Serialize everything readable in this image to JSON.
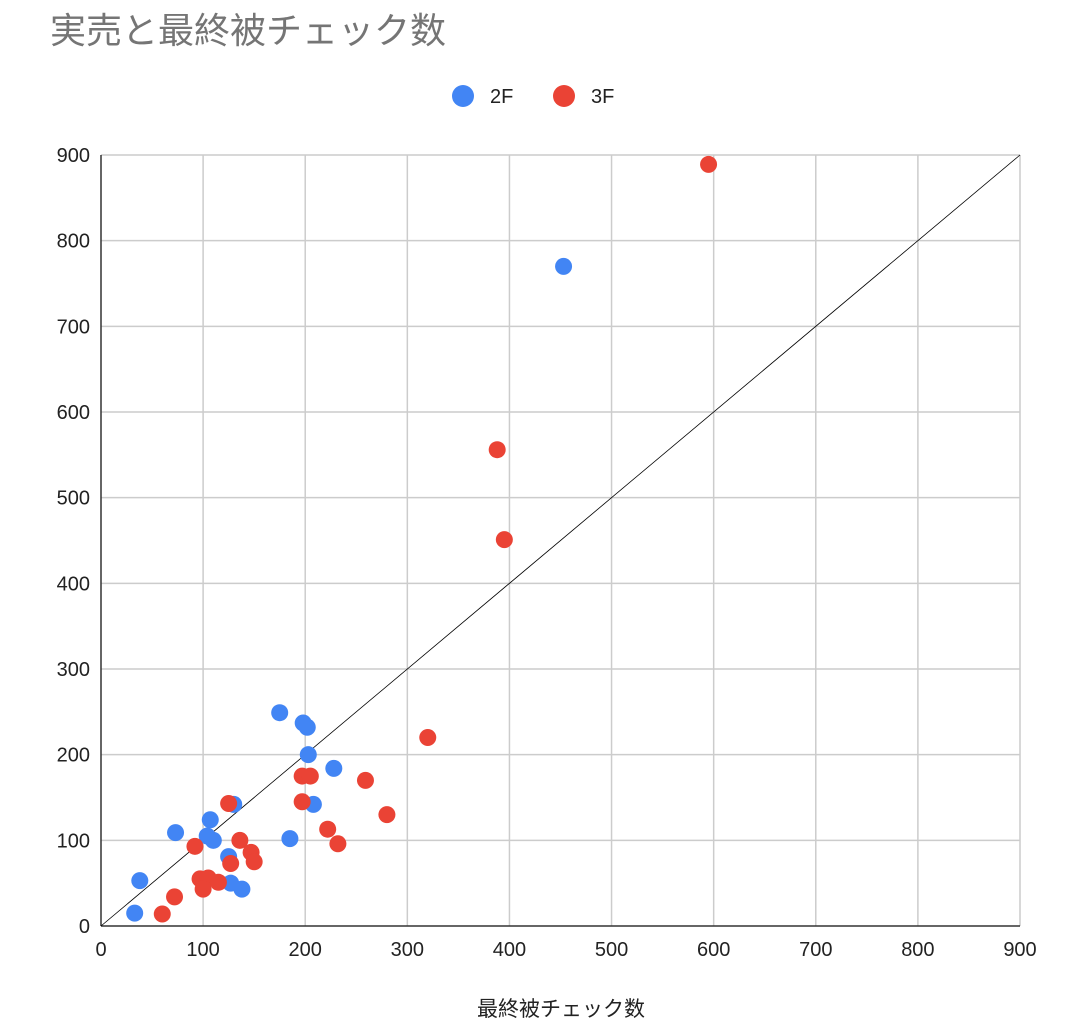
{
  "chart_data": {
    "type": "scatter",
    "title": "実売と最終被チェック数",
    "xlabel": "最終被チェック数",
    "ylabel": "",
    "xlim": [
      0,
      900
    ],
    "ylim": [
      0,
      900
    ],
    "xticks": [
      0,
      100,
      200,
      300,
      400,
      500,
      600,
      700,
      800,
      900
    ],
    "yticks": [
      0,
      100,
      200,
      300,
      400,
      500,
      600,
      700,
      800,
      900
    ],
    "grid": true,
    "legend_position": "top-center",
    "reference_line": {
      "from": [
        0,
        0
      ],
      "to": [
        900,
        900
      ],
      "color": "#000000"
    },
    "series": [
      {
        "name": "2F",
        "color": "#4285f4",
        "points": [
          [
            453,
            770
          ],
          [
            175,
            249
          ],
          [
            198,
            237
          ],
          [
            202,
            232
          ],
          [
            203,
            200
          ],
          [
            228,
            184
          ],
          [
            130,
            142
          ],
          [
            208,
            142
          ],
          [
            107,
            124
          ],
          [
            73,
            109
          ],
          [
            104,
            105
          ],
          [
            110,
            100
          ],
          [
            185,
            102
          ],
          [
            125,
            81
          ],
          [
            38,
            53
          ],
          [
            127,
            50
          ],
          [
            138,
            43
          ],
          [
            33,
            15
          ]
        ]
      },
      {
        "name": "3F",
        "color": "#ea4335",
        "points": [
          [
            595,
            889
          ],
          [
            388,
            556
          ],
          [
            395,
            451
          ],
          [
            320,
            220
          ],
          [
            197,
            175
          ],
          [
            205,
            175
          ],
          [
            259,
            170
          ],
          [
            197,
            145
          ],
          [
            125,
            143
          ],
          [
            222,
            113
          ],
          [
            280,
            130
          ],
          [
            136,
            100
          ],
          [
            232,
            96
          ],
          [
            92,
            93
          ],
          [
            147,
            86
          ],
          [
            150,
            75
          ],
          [
            127,
            73
          ],
          [
            97,
            55
          ],
          [
            105,
            56
          ],
          [
            115,
            51
          ],
          [
            100,
            43
          ],
          [
            72,
            34
          ],
          [
            60,
            14
          ]
        ]
      }
    ]
  }
}
